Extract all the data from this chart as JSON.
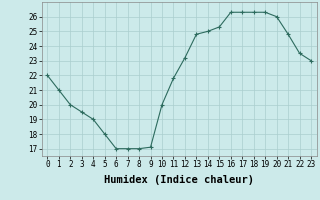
{
  "x": [
    0,
    1,
    2,
    3,
    4,
    5,
    6,
    7,
    8,
    9,
    10,
    11,
    12,
    13,
    14,
    15,
    16,
    17,
    18,
    19,
    20,
    21,
    22,
    23
  ],
  "y": [
    22.0,
    21.0,
    20.0,
    19.5,
    19.0,
    18.0,
    17.0,
    17.0,
    17.0,
    17.1,
    20.0,
    21.8,
    23.2,
    24.8,
    25.0,
    25.3,
    26.3,
    26.3,
    26.3,
    26.3,
    26.0,
    24.8,
    23.5,
    23.0
  ],
  "line_color": "#2d6b5e",
  "marker": "+",
  "bg_color": "#cceaea",
  "grid_color": "#aacece",
  "xlabel": "Humidex (Indice chaleur)",
  "ylim": [
    16.5,
    27.0
  ],
  "xlim": [
    -0.5,
    23.5
  ],
  "yticks": [
    17,
    18,
    19,
    20,
    21,
    22,
    23,
    24,
    25,
    26
  ],
  "xticks": [
    0,
    1,
    2,
    3,
    4,
    5,
    6,
    7,
    8,
    9,
    10,
    11,
    12,
    13,
    14,
    15,
    16,
    17,
    18,
    19,
    20,
    21,
    22,
    23
  ],
  "tick_fontsize": 5.5,
  "xlabel_fontsize": 7.5,
  "linewidth": 0.8,
  "markersize": 3.0,
  "markeredgewidth": 0.8
}
